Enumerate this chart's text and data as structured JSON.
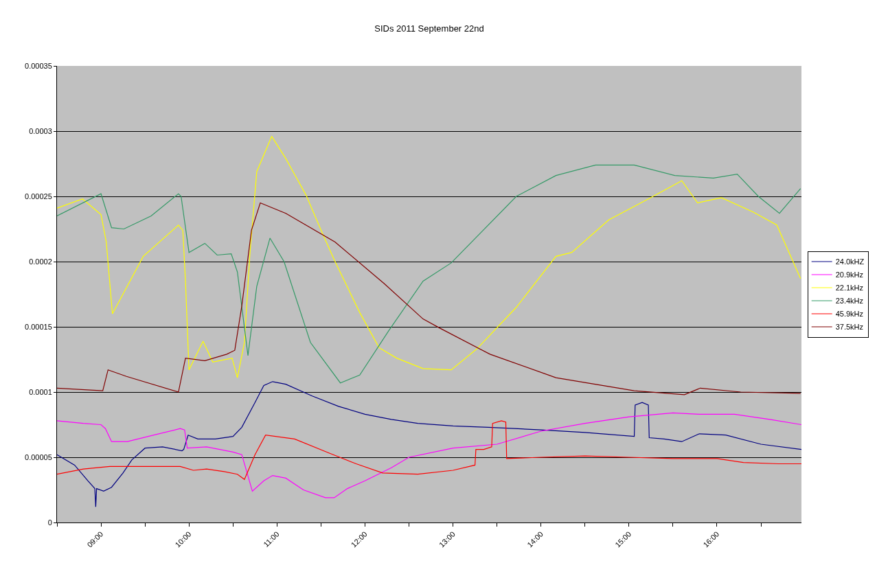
{
  "chart_data": {
    "type": "line",
    "title": "SIDs 2011 September 22nd",
    "xlim": [
      8.5,
      16.96
    ],
    "xticks": [
      {
        "value": 8.5,
        "label": null
      },
      {
        "value": 9,
        "label": "09:00"
      },
      {
        "value": 9.5,
        "label": null
      },
      {
        "value": 10,
        "label": "10:00"
      },
      {
        "value": 10.5,
        "label": null
      },
      {
        "value": 11,
        "label": "11:00"
      },
      {
        "value": 11.5,
        "label": null
      },
      {
        "value": 12,
        "label": "12:00"
      },
      {
        "value": 12.5,
        "label": null
      },
      {
        "value": 13,
        "label": "13:00"
      },
      {
        "value": 13.5,
        "label": null
      },
      {
        "value": 14,
        "label": "14:00"
      },
      {
        "value": 14.5,
        "label": null
      },
      {
        "value": 15,
        "label": "15:00"
      },
      {
        "value": 15.5,
        "label": null
      },
      {
        "value": 16,
        "label": "16:00"
      },
      {
        "value": 16.5,
        "label": null
      }
    ],
    "ylim": [
      0,
      0.00035
    ],
    "yticks": [
      {
        "value": 0,
        "label": "0"
      },
      {
        "value": 5e-05,
        "label": "0.00005"
      },
      {
        "value": 0.0001,
        "label": "0.0001"
      },
      {
        "value": 0.00015,
        "label": "0.00015"
      },
      {
        "value": 0.0002,
        "label": "0.0002"
      },
      {
        "value": 0.00025,
        "label": "0.00025"
      },
      {
        "value": 0.0003,
        "label": "0.0003"
      },
      {
        "value": 0.00035,
        "label": "0.00035"
      }
    ],
    "grid": "y",
    "legend": "right",
    "marker": "none",
    "line_style": "solid",
    "series": [
      {
        "name": "24.0kHZ",
        "color": "#000080",
        "x": [
          8.5,
          8.7,
          8.85,
          8.93,
          8.94,
          8.95,
          9.03,
          9.12,
          9.25,
          9.35,
          9.5,
          9.7,
          9.92,
          9.94,
          9.99,
          10.1,
          10.3,
          10.5,
          10.6,
          10.75,
          10.85,
          10.95,
          11.1,
          11.4,
          11.7,
          12,
          12.3,
          12.6,
          13,
          13.4,
          13.7,
          14,
          14.5,
          15.06,
          15.07,
          15.15,
          15.22,
          15.23,
          15.4,
          15.6,
          15.8,
          16.1,
          16.5,
          16.96
        ],
        "values": [
          5.2e-05,
          4.4e-05,
          3.2e-05,
          2.6e-05,
          1.2e-05,
          2.6e-05,
          2.4e-05,
          2.7e-05,
          3.8e-05,
          4.8e-05,
          5.7e-05,
          5.8e-05,
          5.5e-05,
          5.6e-05,
          6.7e-05,
          6.4e-05,
          6.4e-05,
          6.6e-05,
          7.3e-05,
          9.2e-05,
          0.000105,
          0.000108,
          0.000106,
          9.7e-05,
          8.9e-05,
          8.3e-05,
          7.9e-05,
          7.6e-05,
          7.4e-05,
          7.3e-05,
          7.2e-05,
          7.1e-05,
          6.9e-05,
          6.6e-05,
          9e-05,
          9.2e-05,
          9e-05,
          6.5e-05,
          6.4e-05,
          6.2e-05,
          6.8e-05,
          6.7e-05,
          6e-05,
          5.6e-05
        ]
      },
      {
        "name": "20.9kHz",
        "color": "#ff00ff",
        "x": [
          8.5,
          8.8,
          9.0,
          9.05,
          9.12,
          9.3,
          9.6,
          9.9,
          9.95,
          9.98,
          10.2,
          10.5,
          10.6,
          10.72,
          10.85,
          10.95,
          11.1,
          11.3,
          11.55,
          11.65,
          11.8,
          12,
          12.3,
          12.5,
          13,
          13.5,
          14,
          14.5,
          15,
          15.5,
          15.8,
          16.2,
          16.6,
          16.96
        ],
        "values": [
          7.8e-05,
          7.6e-05,
          7.5e-05,
          7.2e-05,
          6.2e-05,
          6.2e-05,
          6.7e-05,
          7.2e-05,
          7.1e-05,
          5.7e-05,
          5.8e-05,
          5.4e-05,
          5.2e-05,
          2.4e-05,
          3.2e-05,
          3.6e-05,
          3.4e-05,
          2.5e-05,
          1.9e-05,
          1.9e-05,
          2.6e-05,
          3.2e-05,
          4.2e-05,
          5e-05,
          5.7e-05,
          6e-05,
          7e-05,
          7.6e-05,
          8.1e-05,
          8.4e-05,
          8.3e-05,
          8.3e-05,
          7.9e-05,
          7.5e-05
        ]
      },
      {
        "name": "22.1kHz",
        "color": "#ffff00",
        "x": [
          8.5,
          8.79,
          9.0,
          9.06,
          9.13,
          9.48,
          9.88,
          9.93,
          9.96,
          10.0,
          10.16,
          10.27,
          10.49,
          10.55,
          10.63,
          10.69,
          10.77,
          10.94,
          11.1,
          11.33,
          11.52,
          11.66,
          11.94,
          12.16,
          12.36,
          12.66,
          12.98,
          13.27,
          13.72,
          14.17,
          14.35,
          14.77,
          15.22,
          15.6,
          15.78,
          16.05,
          16.41,
          16.68,
          16.95
        ],
        "values": [
          0.000241,
          0.000248,
          0.000236,
          0.000215,
          0.00016,
          0.000204,
          0.000228,
          0.000224,
          0.000185,
          0.000117,
          0.000139,
          0.000123,
          0.000126,
          0.000111,
          0.000138,
          0.000204,
          0.000269,
          0.000296,
          0.000279,
          0.000251,
          0.000221,
          0.0002,
          0.000161,
          0.000134,
          0.000126,
          0.000118,
          0.000117,
          0.000133,
          0.000165,
          0.000204,
          0.000207,
          0.000232,
          0.000248,
          0.000262,
          0.000245,
          0.000249,
          0.000238,
          0.000228,
          0.000187
        ]
      },
      {
        "name": "23.4kHz",
        "color": "#339966",
        "x": [
          8.5,
          9.0,
          9.12,
          9.26,
          9.57,
          9.88,
          9.91,
          10.0,
          10.18,
          10.32,
          10.48,
          10.55,
          10.67,
          10.77,
          10.92,
          11.08,
          11.38,
          11.72,
          11.94,
          12.27,
          12.66,
          12.98,
          13.72,
          14.17,
          14.62,
          15.06,
          15.52,
          15.96,
          16.23,
          16.47,
          16.71,
          16.95
        ],
        "values": [
          0.000235,
          0.000252,
          0.000226,
          0.000225,
          0.000235,
          0.000252,
          0.00025,
          0.000207,
          0.000214,
          0.000205,
          0.000206,
          0.000192,
          0.000128,
          0.000181,
          0.000218,
          0.0002,
          0.000138,
          0.000107,
          0.000113,
          0.000147,
          0.000185,
          0.000199,
          0.00025,
          0.000266,
          0.000274,
          0.000274,
          0.000266,
          0.000264,
          0.000267,
          0.00025,
          0.000237,
          0.000256
        ]
      },
      {
        "name": "45.9kHz",
        "color": "#ff0000",
        "x": [
          8.5,
          8.8,
          9.1,
          9.5,
          9.9,
          10.05,
          10.2,
          10.4,
          10.55,
          10.63,
          10.75,
          10.87,
          11.2,
          11.6,
          11.9,
          12.2,
          12.6,
          13,
          13.25,
          13.26,
          13.35,
          13.44,
          13.45,
          13.55,
          13.6,
          13.61,
          14,
          14.5,
          15,
          15.5,
          16,
          16.3,
          16.7,
          16.96
        ],
        "values": [
          3.7e-05,
          4.1e-05,
          4.3e-05,
          4.3e-05,
          4.3e-05,
          4e-05,
          4.1e-05,
          3.9e-05,
          3.7e-05,
          3.3e-05,
          5.2e-05,
          6.7e-05,
          6.4e-05,
          5.3e-05,
          4.5e-05,
          3.8e-05,
          3.7e-05,
          4e-05,
          4.4e-05,
          5.6e-05,
          5.6e-05,
          5.8e-05,
          7.6e-05,
          7.8e-05,
          7.7e-05,
          4.9e-05,
          5e-05,
          5.1e-05,
          5e-05,
          4.9e-05,
          4.9e-05,
          4.6e-05,
          4.5e-05,
          4.5e-05
        ]
      },
      {
        "name": "37.5kHz",
        "color": "#800000",
        "x": [
          8.5,
          9.02,
          9.08,
          9.29,
          9.88,
          9.96,
          10.18,
          10.43,
          10.52,
          10.6,
          10.71,
          10.81,
          11.1,
          11.66,
          12.22,
          12.66,
          12.85,
          13.42,
          14.17,
          15.06,
          15.63,
          15.81,
          16.27,
          16.95
        ],
        "values": [
          0.000103,
          0.000101,
          0.000117,
          0.000112,
          0.0001,
          0.000126,
          0.000124,
          0.000129,
          0.000132,
          0.000166,
          0.000224,
          0.000245,
          0.000237,
          0.000215,
          0.000183,
          0.000156,
          0.000149,
          0.000129,
          0.000111,
          0.000101,
          9.8e-05,
          0.000103,
          0.0001,
          9.9e-05
        ]
      }
    ]
  }
}
